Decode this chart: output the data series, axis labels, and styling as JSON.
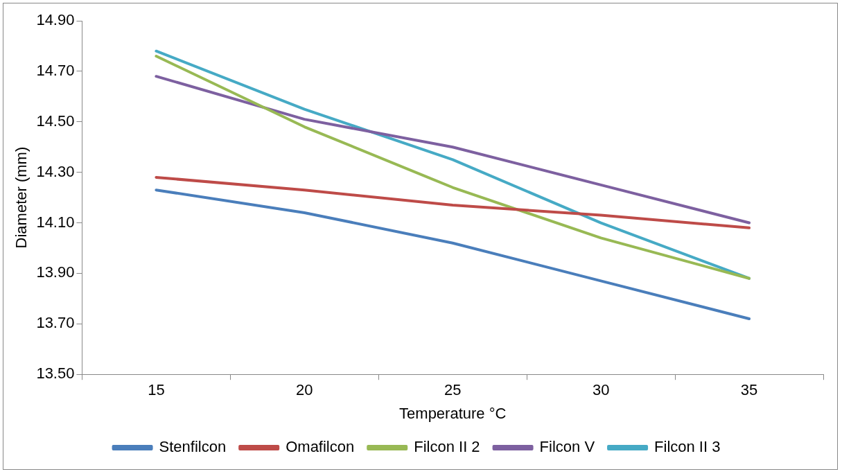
{
  "chart_data": {
    "type": "line",
    "xlabel": "Temperature °C",
    "ylabel": "Diameter (mm)",
    "categories": [
      "15",
      "20",
      "25",
      "30",
      "35"
    ],
    "ylim": [
      13.5,
      14.9
    ],
    "yticks": [
      {
        "value": 13.5,
        "label": "13.50"
      },
      {
        "value": 13.7,
        "label": "13.70"
      },
      {
        "value": 13.9,
        "label": "13.90"
      },
      {
        "value": 14.1,
        "label": "14.10"
      },
      {
        "value": 14.3,
        "label": "14.30"
      },
      {
        "value": 14.5,
        "label": "14.50"
      },
      {
        "value": 14.7,
        "label": "14.70"
      },
      {
        "value": 14.9,
        "label": "14.90"
      }
    ],
    "grid": false,
    "legend": "bottom",
    "marker": "none",
    "line_style": "solid",
    "series": [
      {
        "name": "Stenfilcon",
        "color": "#4a7ebb",
        "values": [
          14.23,
          14.14,
          14.02,
          13.87,
          13.72
        ]
      },
      {
        "name": "Omafilcon",
        "color": "#be4b48",
        "values": [
          14.28,
          14.23,
          14.17,
          14.13,
          14.08
        ]
      },
      {
        "name": "Filcon II 2",
        "color": "#98b954",
        "values": [
          14.76,
          14.48,
          14.24,
          14.04,
          13.88
        ]
      },
      {
        "name": "Filcon V",
        "color": "#7d60a0",
        "values": [
          14.68,
          14.51,
          14.4,
          14.25,
          14.1
        ]
      },
      {
        "name": "Filcon II 3",
        "color": "#46aac5",
        "values": [
          14.78,
          14.55,
          14.35,
          14.1,
          13.88
        ]
      }
    ]
  }
}
